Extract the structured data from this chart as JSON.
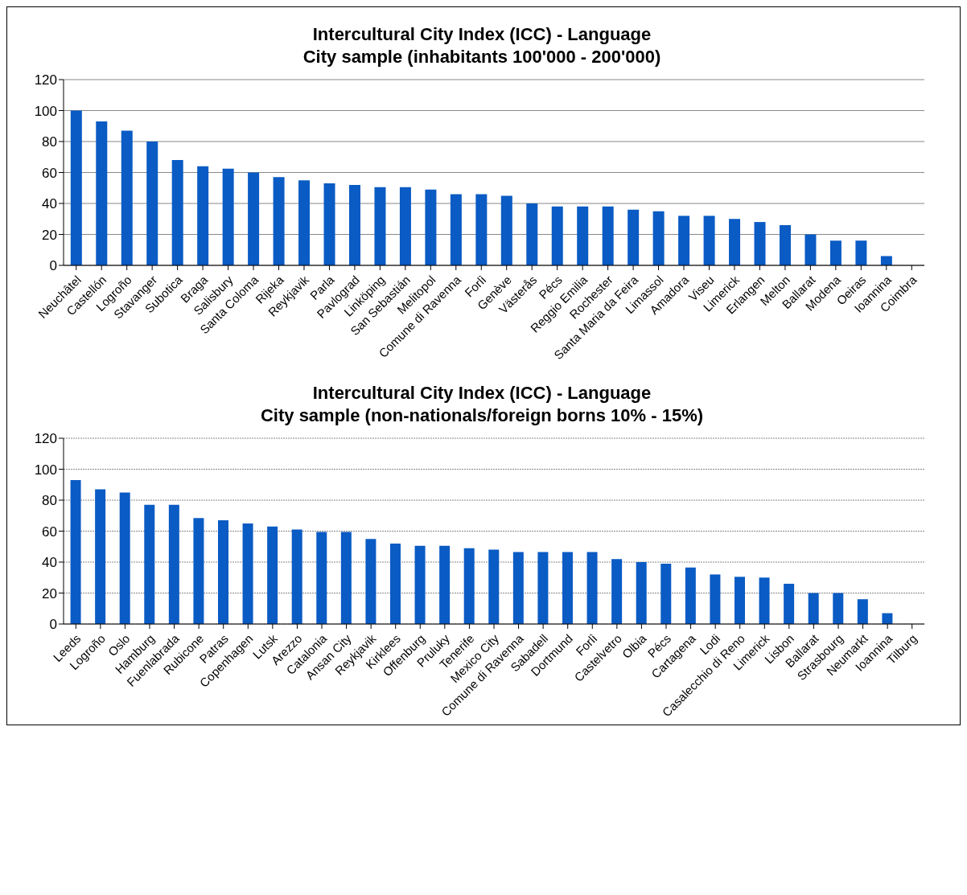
{
  "chart_data": [
    {
      "type": "bar",
      "title": "Intercultural City Index (ICC) - Language",
      "subtitle": "City sample (inhabitants 100'000 - 200'000)",
      "categories": [
        "Neuchâtel",
        "Castellón",
        "Logroño",
        "Stavanger",
        "Subotica",
        "Braga",
        "Salisbury",
        "Santa Coloma",
        "Rijeka",
        "Reykjavik",
        "Parla",
        "Pavlograd",
        "Linköping",
        "San Sebastián",
        "Melitopol",
        "Comune di Ravenna",
        "Forlì",
        "Genève",
        "Västerås",
        "Pécs",
        "Reggio Emilia",
        "Rochester",
        "Santa Maria da Feira",
        "Limassol",
        "Amadora",
        "Viseu",
        "Limerick",
        "Erlangen",
        "Melton",
        "Ballarat",
        "Modena",
        "Oeiras",
        "Ioannina",
        "Coimbra"
      ],
      "values": [
        100,
        93,
        87,
        80,
        68,
        64,
        62.5,
        60,
        57,
        55,
        53,
        52,
        50.5,
        50.5,
        49,
        46,
        46,
        45,
        40,
        38,
        38,
        38,
        36,
        35,
        32,
        32,
        30,
        28,
        26,
        20,
        16,
        16,
        6,
        0
      ],
      "color": "#0a5bc4",
      "ylim": [
        0,
        120
      ],
      "yticks": [
        0,
        20,
        40,
        60,
        80,
        100,
        120
      ],
      "grid": "y"
    },
    {
      "type": "bar",
      "title": "Intercultural City Index (ICC) - Language",
      "subtitle": "City sample (non-nationals/foreign borns 10% - 15%)",
      "categories": [
        "Leeds",
        "Logroño",
        "Oslo",
        "Hamburg",
        "Fuenlabrada",
        "Rubicone",
        "Patras",
        "Copenhagen",
        "Lutsk",
        "Arezzo",
        "Catalonia",
        "Ansan City",
        "Reykjavik",
        "Kirklees",
        "Offenburg",
        "Pruluky",
        "Tenerife",
        "Mexico City",
        "Comune di Ravenna",
        "Sabadell",
        "Dortmund",
        "Forlì",
        "Castelvetro",
        "Olbia",
        "Pécs",
        "Cartagena",
        "Lodi",
        "Casalecchio di Reno",
        "Limerick",
        "Lisbon",
        "Ballarat",
        "Strasbourg",
        "Neumarkt",
        "Ioannina",
        "Tilburg"
      ],
      "values": [
        93,
        87,
        85,
        77,
        77,
        68.5,
        67,
        65,
        63,
        61,
        59.5,
        59.5,
        55,
        52,
        50.5,
        50.5,
        49,
        48,
        46.5,
        46.5,
        46.5,
        46.5,
        42,
        40,
        39,
        36.5,
        32,
        30.5,
        30,
        26,
        20,
        20,
        16,
        7,
        0
      ],
      "color": "#0a5bc4",
      "ylim": [
        0,
        120
      ],
      "yticks": [
        0,
        20,
        40,
        60,
        80,
        100,
        120
      ],
      "grid": "y"
    }
  ]
}
